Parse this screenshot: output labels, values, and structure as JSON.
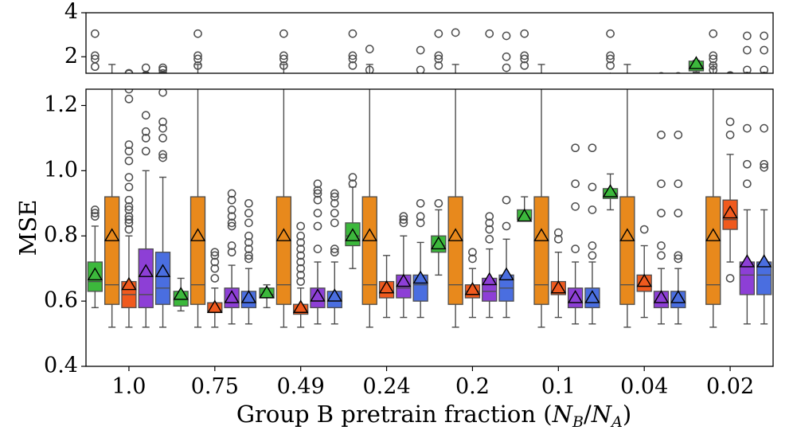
{
  "chart_data": {
    "type": "box",
    "title": "",
    "xlabel": "Group B pretrain fraction (N_B/N_A)",
    "xlabel_parts": {
      "prefix": "Group B pretrain fraction (",
      "numer": "N",
      "numer_sub": "B",
      "slash": "/",
      "denom": "N",
      "denom_sub": "A",
      "suffix": ")"
    },
    "ylabel": "MSE",
    "main_ylim": [
      0.4,
      1.25
    ],
    "main_yticks": [
      "0.4",
      "0.6",
      "0.8",
      "1.0",
      "1.2"
    ],
    "top_ylim": [
      1.25,
      4.0
    ],
    "top_yticks": [
      "2",
      "4"
    ],
    "categories": [
      "1.0",
      "0.75",
      "0.49",
      "0.24",
      "0.2",
      "0.1",
      "0.04",
      "0.02"
    ],
    "series_colors": [
      "#3cb83c",
      "#e8891c",
      "#f05a1e",
      "#8d3fd6",
      "#4a6ee0"
    ],
    "mean_marker": "triangle",
    "groups": [
      {
        "category": "1.0",
        "boxes": [
          {
            "series": 0,
            "whislo": 0.58,
            "q1": 0.63,
            "med": 0.66,
            "q3": 0.72,
            "whishi": 0.83,
            "mean": 0.68,
            "fliers": [
              0.86,
              0.87,
              0.88,
              1.55,
              1.9,
              2.05,
              3.05
            ]
          },
          {
            "series": 1,
            "whislo": 0.52,
            "q1": 0.59,
            "med": 0.65,
            "q3": 0.92,
            "whishi": 1.65,
            "mean": 0.8,
            "fliers": []
          },
          {
            "series": 2,
            "whislo": 0.52,
            "q1": 0.58,
            "med": 0.62,
            "q3": 0.66,
            "whishi": 0.8,
            "mean": 0.65,
            "fliers": [
              0.82,
              0.84,
              0.85,
              0.86,
              0.88,
              0.89,
              0.91,
              0.95,
              0.98,
              1.03,
              1.06,
              1.08,
              1.22,
              1.25
            ]
          },
          {
            "series": 3,
            "whislo": 0.52,
            "q1": 0.58,
            "med": 0.62,
            "q3": 0.76,
            "whishi": 1.0,
            "mean": 0.69,
            "fliers": [
              1.06,
              1.1,
              1.12,
              1.17,
              1.5
            ]
          },
          {
            "series": 4,
            "whislo": 0.52,
            "q1": 0.59,
            "med": 0.64,
            "q3": 0.75,
            "whishi": 0.98,
            "mean": 0.69,
            "fliers": [
              1.04,
              1.05,
              1.1,
              1.13,
              1.15,
              1.24,
              1.4,
              1.5
            ]
          }
        ]
      },
      {
        "category": "0.75",
        "boxes": [
          {
            "series": 0,
            "whislo": 0.57,
            "q1": 0.585,
            "med": 0.61,
            "q3": 0.63,
            "whishi": 0.67,
            "mean": 0.62,
            "fliers": []
          },
          {
            "series": 1,
            "whislo": 0.52,
            "q1": 0.59,
            "med": 0.65,
            "q3": 0.92,
            "whishi": 1.65,
            "mean": 0.8,
            "fliers": [
              1.6,
              1.9,
              2.05,
              3.05
            ]
          },
          {
            "series": 2,
            "whislo": 0.52,
            "q1": 0.565,
            "med": 0.57,
            "q3": 0.595,
            "whishi": 0.64,
            "mean": 0.58,
            "fliers": [
              0.67,
              0.7,
              0.72,
              0.74,
              0.75
            ]
          },
          {
            "series": 3,
            "whislo": 0.53,
            "q1": 0.58,
            "med": 0.6,
            "q3": 0.64,
            "whishi": 0.71,
            "mean": 0.61,
            "fliers": [
              0.75,
              0.77,
              0.83,
              0.84,
              0.86,
              0.88,
              0.91,
              0.93
            ]
          },
          {
            "series": 4,
            "whislo": 0.53,
            "q1": 0.58,
            "med": 0.6,
            "q3": 0.63,
            "whishi": 0.7,
            "mean": 0.61,
            "fliers": [
              0.73,
              0.74,
              0.76,
              0.78,
              0.8,
              0.84,
              0.87,
              0.9
            ]
          }
        ]
      },
      {
        "category": "0.49",
        "boxes": [
          {
            "series": 0,
            "whislo": 0.58,
            "q1": 0.61,
            "med": 0.62,
            "q3": 0.64,
            "whishi": 0.65,
            "mean": 0.625,
            "fliers": []
          },
          {
            "series": 1,
            "whislo": 0.52,
            "q1": 0.59,
            "med": 0.65,
            "q3": 0.92,
            "whishi": 1.65,
            "mean": 0.8,
            "fliers": [
              1.6,
              1.9,
              2.05,
              3.05
            ]
          },
          {
            "series": 2,
            "whislo": 0.52,
            "q1": 0.56,
            "med": 0.57,
            "q3": 0.59,
            "whishi": 0.64,
            "mean": 0.58,
            "fliers": [
              0.66,
              0.68,
              0.7,
              0.72,
              0.74,
              0.76,
              0.78,
              0.8,
              0.83
            ]
          },
          {
            "series": 3,
            "whislo": 0.53,
            "q1": 0.58,
            "med": 0.6,
            "q3": 0.64,
            "whishi": 0.72,
            "mean": 0.615,
            "fliers": [
              0.76,
              0.83,
              0.87,
              0.91,
              0.93,
              0.94,
              0.96
            ]
          },
          {
            "series": 4,
            "whislo": 0.53,
            "q1": 0.58,
            "med": 0.6,
            "q3": 0.63,
            "whishi": 0.72,
            "mean": 0.615,
            "fliers": [
              0.75,
              0.76,
              0.84,
              0.87,
              0.9,
              0.92,
              0.93
            ]
          }
        ]
      },
      {
        "category": "0.24",
        "boxes": [
          {
            "series": 0,
            "whislo": 0.7,
            "q1": 0.77,
            "med": 0.8,
            "q3": 0.84,
            "whishi": 0.95,
            "mean": 0.8,
            "fliers": [
              0.96,
              0.98,
              1.6,
              1.9,
              2.05,
              3.05
            ]
          },
          {
            "series": 1,
            "whislo": 0.52,
            "q1": 0.59,
            "med": 0.65,
            "q3": 0.92,
            "whishi": 1.65,
            "mean": 0.8,
            "fliers": [
              1.4,
              2.35
            ]
          },
          {
            "series": 2,
            "whislo": 0.55,
            "q1": 0.61,
            "med": 0.63,
            "q3": 0.66,
            "whishi": 0.74,
            "mean": 0.64,
            "fliers": []
          },
          {
            "series": 3,
            "whislo": 0.55,
            "q1": 0.61,
            "med": 0.64,
            "q3": 0.68,
            "whishi": 0.8,
            "mean": 0.66,
            "fliers": [
              0.84,
              0.85,
              0.86
            ]
          },
          {
            "series": 4,
            "whislo": 0.55,
            "q1": 0.6,
            "med": 0.65,
            "q3": 0.68,
            "whishi": 0.78,
            "mean": 0.67,
            "fliers": [
              0.84,
              0.86,
              0.9,
              1.4,
              2.3
            ]
          }
        ]
      },
      {
        "category": "0.2",
        "boxes": [
          {
            "series": 0,
            "whislo": 0.68,
            "q1": 0.75,
            "med": 0.77,
            "q3": 0.8,
            "whishi": 0.88,
            "mean": 0.775,
            "fliers": [
              0.9,
              1.6,
              1.9,
              2.05,
              3.05
            ]
          },
          {
            "series": 1,
            "whislo": 0.52,
            "q1": 0.59,
            "med": 0.65,
            "q3": 0.92,
            "whishi": 1.65,
            "mean": 0.8,
            "fliers": [
              3.1
            ]
          },
          {
            "series": 2,
            "whislo": 0.55,
            "q1": 0.61,
            "med": 0.63,
            "q3": 0.65,
            "whishi": 0.7,
            "mean": 0.635,
            "fliers": [
              0.73,
              0.75
            ]
          },
          {
            "series": 3,
            "whislo": 0.55,
            "q1": 0.6,
            "med": 0.63,
            "q3": 0.67,
            "whishi": 0.76,
            "mean": 0.665,
            "fliers": [
              0.79,
              0.82,
              0.84,
              0.86,
              3.05
            ]
          },
          {
            "series": 4,
            "whislo": 0.55,
            "q1": 0.6,
            "med": 0.64,
            "q3": 0.68,
            "whishi": 0.79,
            "mean": 0.68,
            "fliers": [
              0.83,
              0.91,
              1.5,
              2.0,
              2.95
            ]
          }
        ]
      },
      {
        "category": "0.1",
        "boxes": [
          {
            "series": 0,
            "whislo": 0.85,
            "q1": 0.85,
            "med": 0.855,
            "q3": 0.88,
            "whishi": 0.92,
            "mean": 0.86,
            "fliers": [
              1.6,
              1.9,
              2.05,
              3.05
            ]
          },
          {
            "series": 1,
            "whislo": 0.52,
            "q1": 0.59,
            "med": 0.65,
            "q3": 0.92,
            "whishi": 1.65,
            "mean": 0.8,
            "fliers": []
          },
          {
            "series": 2,
            "whislo": 0.55,
            "q1": 0.62,
            "med": 0.63,
            "q3": 0.66,
            "whishi": 0.75,
            "mean": 0.64,
            "fliers": [
              0.79,
              0.81
            ]
          },
          {
            "series": 3,
            "whislo": 0.53,
            "q1": 0.58,
            "med": 0.6,
            "q3": 0.64,
            "whishi": 0.72,
            "mean": 0.61,
            "fliers": [
              0.76,
              0.89,
              0.96,
              1.07
            ]
          },
          {
            "series": 4,
            "whislo": 0.53,
            "q1": 0.58,
            "med": 0.6,
            "q3": 0.64,
            "whishi": 0.72,
            "mean": 0.61,
            "fliers": [
              0.74,
              0.77,
              0.88,
              0.95,
              1.07
            ]
          }
        ]
      },
      {
        "category": "0.04",
        "boxes": [
          {
            "series": 0,
            "whislo": 0.88,
            "q1": 0.915,
            "med": 0.93,
            "q3": 0.945,
            "whishi": 0.99,
            "mean": 0.935,
            "fliers": [
              1.6,
              1.9,
              2.05,
              3.05
            ]
          },
          {
            "series": 1,
            "whislo": 0.52,
            "q1": 0.59,
            "med": 0.65,
            "q3": 0.92,
            "whishi": 1.65,
            "mean": 0.8,
            "fliers": []
          },
          {
            "series": 2,
            "whislo": 0.55,
            "q1": 0.63,
            "med": 0.65,
            "q3": 0.68,
            "whishi": 0.77,
            "mean": 0.66,
            "fliers": [
              0.82
            ]
          },
          {
            "series": 3,
            "whislo": 0.53,
            "q1": 0.58,
            "med": 0.6,
            "q3": 0.63,
            "whishi": 0.7,
            "mean": 0.61,
            "fliers": [
              0.74,
              0.77,
              0.87,
              0.96,
              1.11
            ]
          },
          {
            "series": 4,
            "whislo": 0.53,
            "q1": 0.58,
            "med": 0.6,
            "q3": 0.63,
            "whishi": 0.7,
            "mean": 0.61,
            "fliers": [
              0.73,
              0.74,
              0.87,
              0.96,
              1.11
            ]
          }
        ]
      },
      {
        "category": "0.02",
        "boxes": [
          {
            "series": 0,
            "whislo": 1.3,
            "q1": 1.36,
            "med": 1.58,
            "q3": 1.8,
            "whishi": 1.83,
            "mean": 1.68,
            "fliers": []
          },
          {
            "series": 1,
            "whislo": 0.52,
            "q1": 0.59,
            "med": 0.65,
            "q3": 0.92,
            "whishi": 1.65,
            "mean": 0.8,
            "fliers": [
              1.4,
              1.6,
              1.9,
              2.05,
              3.05
            ]
          },
          {
            "series": 2,
            "whislo": 0.72,
            "q1": 0.82,
            "med": 0.85,
            "q3": 0.91,
            "whishi": 1.05,
            "mean": 0.87,
            "fliers": [
              0.67,
              1.11,
              1.15
            ]
          },
          {
            "series": 3,
            "whislo": 0.53,
            "q1": 0.62,
            "med": 0.68,
            "q3": 0.72,
            "whishi": 0.88,
            "mean": 0.72,
            "fliers": [
              0.96,
              1.02,
              1.13,
              1.4,
              2.3,
              2.95
            ]
          },
          {
            "series": 4,
            "whislo": 0.53,
            "q1": 0.62,
            "med": 0.68,
            "q3": 0.72,
            "whishi": 0.88,
            "mean": 0.72,
            "fliers": [
              1.01,
              1.02,
              1.13,
              1.4,
              2.3,
              2.95
            ]
          }
        ]
      }
    ]
  }
}
